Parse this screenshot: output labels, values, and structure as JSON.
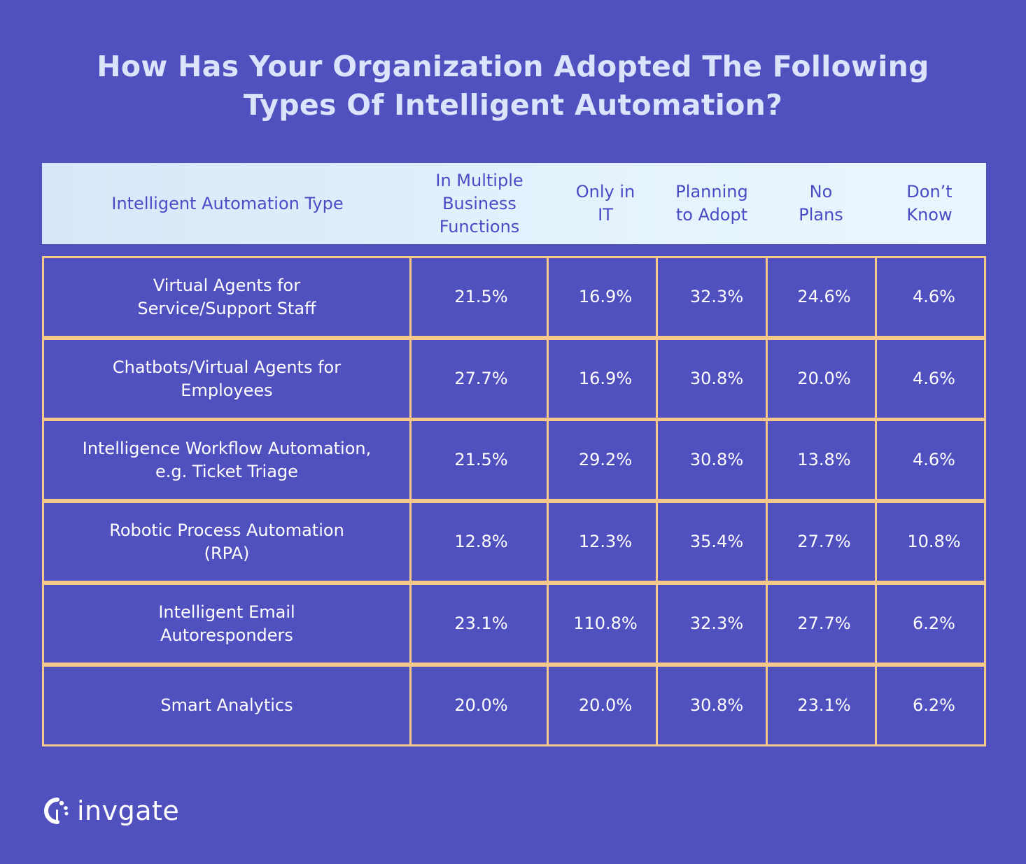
{
  "title": {
    "line1": "How Has Your Organization Adopted The Following",
    "line2": "Types Of Intelligent Automation?"
  },
  "chart_data": {
    "type": "table",
    "columns": [
      {
        "lines": [
          "Intelligent Automation Type"
        ]
      },
      {
        "lines": [
          "In Multiple",
          "Business",
          "Functions"
        ]
      },
      {
        "lines": [
          "Only in",
          "IT"
        ]
      },
      {
        "lines": [
          "Planning",
          "to Adopt"
        ]
      },
      {
        "lines": [
          "No",
          "Plans"
        ]
      },
      {
        "lines": [
          "Don’t",
          "Know"
        ]
      }
    ],
    "rows": [
      {
        "name": [
          "Virtual Agents for",
          "Service/Support Staff"
        ],
        "values": [
          "21.5%",
          "16.9%",
          "32.3%",
          "24.6%",
          "4.6%"
        ]
      },
      {
        "name": [
          "Chatbots/Virtual Agents for",
          "Employees"
        ],
        "values": [
          "27.7%",
          "16.9%",
          "30.8%",
          "20.0%",
          "4.6%"
        ]
      },
      {
        "name": [
          "Intelligence Workflow Automation,",
          "e.g. Ticket Triage"
        ],
        "values": [
          "21.5%",
          "29.2%",
          "30.8%",
          "13.8%",
          "4.6%"
        ]
      },
      {
        "name": [
          "Robotic Process Automation",
          "(RPA)"
        ],
        "values": [
          "12.8%",
          "12.3%",
          "35.4%",
          "27.7%",
          "10.8%"
        ]
      },
      {
        "name": [
          "Intelligent Email",
          "Autoresponders"
        ],
        "values": [
          "23.1%",
          "110.8%",
          "32.3%",
          "27.7%",
          "6.2%"
        ]
      },
      {
        "name": [
          "Smart Analytics"
        ],
        "values": [
          "20.0%",
          "20.0%",
          "30.8%",
          "23.1%",
          "6.2%"
        ]
      }
    ]
  },
  "colors": {
    "background": "#5150bf",
    "header_text": "#4a4cc6",
    "cell_border": "#f5c98c",
    "title_text": "#dbe4fb"
  },
  "brand": {
    "logo_text": "invgate",
    "logo_icon": "invgate-logo-icon"
  }
}
